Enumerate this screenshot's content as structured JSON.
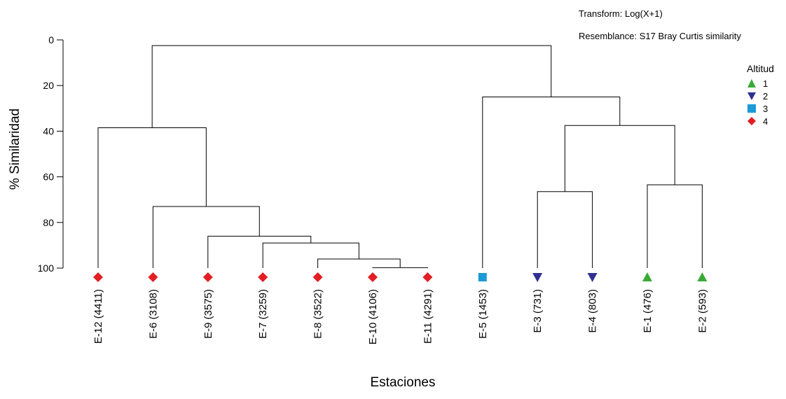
{
  "notes": {
    "transform": "Transform: Log(X+1)",
    "resemblance": "Resemblance: S17 Bray Curtis similarity"
  },
  "legend": {
    "title": "Altitud",
    "items": [
      {
        "label": "1",
        "marker": "triangle-up",
        "color": "#3aaa35"
      },
      {
        "label": "2",
        "marker": "triangle-down",
        "color": "#2e3192"
      },
      {
        "label": "3",
        "marker": "square",
        "color": "#1b9ad6"
      },
      {
        "label": "4",
        "marker": "diamond",
        "color": "#e31e24"
      }
    ]
  },
  "chart_data": {
    "type": "dendrogram",
    "xlabel": "Estaciones",
    "ylabel": "% Similaridad",
    "yticks": [
      0,
      20,
      40,
      60,
      80,
      100
    ],
    "ylim": [
      0,
      100
    ],
    "yaxis_inverted": true,
    "leaves": [
      {
        "label": "E-12 (4411)",
        "group": "4"
      },
      {
        "label": "E-6 (3108)",
        "group": "4"
      },
      {
        "label": "E-9 (3575)",
        "group": "4"
      },
      {
        "label": "E-7 (3259)",
        "group": "4"
      },
      {
        "label": "E-8 (3522)",
        "group": "4"
      },
      {
        "label": "E-10 (4106)",
        "group": "4"
      },
      {
        "label": "E-11 (4291)",
        "group": "4"
      },
      {
        "label": "E-5 (1453)",
        "group": "3"
      },
      {
        "label": "E-3 (731)",
        "group": "2"
      },
      {
        "label": "E-4 (803)",
        "group": "2"
      },
      {
        "label": "E-1 (476)",
        "group": "1"
      },
      {
        "label": "E-2 (593)",
        "group": "1"
      }
    ],
    "merges": [
      {
        "left": 5,
        "right": 6,
        "similarity": 99.8
      },
      {
        "left": 4,
        "right": 12,
        "similarity": 96
      },
      {
        "left": 3,
        "right": 13,
        "similarity": 89
      },
      {
        "left": 2,
        "right": 14,
        "similarity": 86
      },
      {
        "left": 1,
        "right": 15,
        "similarity": 73
      },
      {
        "left": 0,
        "right": 16,
        "similarity": 38.5
      },
      {
        "left": 8,
        "right": 9,
        "similarity": 66.5
      },
      {
        "left": 10,
        "right": 11,
        "similarity": 63.5
      },
      {
        "left": 18,
        "right": 19,
        "similarity": 37.5
      },
      {
        "left": 7,
        "right": 20,
        "similarity": 25
      },
      {
        "left": 17,
        "right": 21,
        "similarity": 2.5
      }
    ]
  }
}
